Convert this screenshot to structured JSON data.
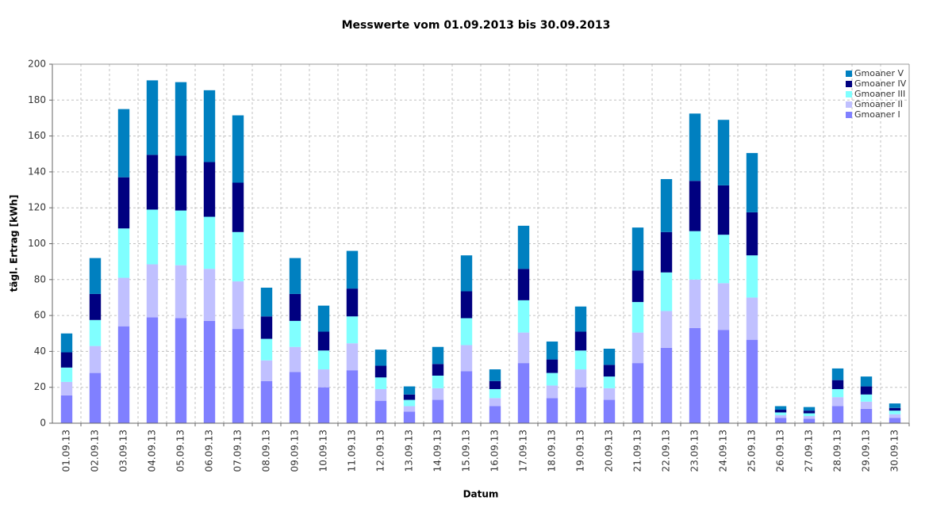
{
  "chart_data": {
    "type": "stacked_bar",
    "title": "Messwerte vom 01.09.2013 bis 30.09.2013",
    "x_label": "Datum",
    "y_label": "tägl. Ertrag [kWh]",
    "categories": [
      "01.09.13",
      "02.09.13",
      "03.09.13",
      "04.09.13",
      "05.09.13",
      "06.09.13",
      "07.09.13",
      "08.09.13",
      "09.09.13",
      "10.09.13",
      "11.09.13",
      "12.09.13",
      "13.09.13",
      "14.09.13",
      "15.09.13",
      "16.09.13",
      "17.09.13",
      "18.09.13",
      "19.09.13",
      "20.09.13",
      "21.09.13",
      "22.09.13",
      "23.09.13",
      "24.09.13",
      "25.09.13",
      "26.09.13",
      "27.09.13",
      "28.09.13",
      "29.09.13",
      "30.09.13"
    ],
    "series": [
      {
        "name": "Gmoaner I",
        "color": "#8080ff",
        "values": [
          15.5,
          28,
          54,
          59,
          58.5,
          57,
          52.5,
          23.5,
          28.5,
          20,
          29.5,
          12.5,
          6.5,
          13,
          29,
          9.5,
          33.5,
          14,
          20,
          13,
          33.5,
          42,
          53,
          52,
          46.5,
          3,
          2.5,
          9.5,
          8,
          3
        ]
      },
      {
        "name": "Gmoaner II",
        "color": "#c0c0ff",
        "values": [
          7.5,
          15,
          27,
          29.5,
          29.5,
          29,
          26.5,
          11.5,
          14,
          10,
          15,
          6.5,
          3,
          6.5,
          14.5,
          4.5,
          17,
          7,
          10,
          6.5,
          17,
          20.5,
          27,
          26,
          23.5,
          1.5,
          1.5,
          5,
          4,
          2
        ]
      },
      {
        "name": "Gmoaner III",
        "color": "#80ffff",
        "values": [
          8,
          14.5,
          27.5,
          30.5,
          30.5,
          29,
          27.5,
          12,
          14.5,
          10.5,
          15,
          6.5,
          3.5,
          7,
          15,
          5,
          18,
          7,
          10.5,
          6.5,
          17,
          21.5,
          27,
          27,
          23.5,
          1.5,
          1.5,
          4.5,
          4,
          2
        ]
      },
      {
        "name": "Gmoaner IV",
        "color": "#000080",
        "values": [
          8.5,
          14.5,
          28.5,
          30.5,
          30.5,
          30.5,
          27.5,
          12.5,
          15,
          10.5,
          15.5,
          6.5,
          3,
          6.5,
          15,
          4.5,
          17.5,
          7.5,
          10.5,
          6.5,
          17.5,
          22.5,
          28,
          27.5,
          24,
          1.5,
          1.5,
          5,
          4.5,
          1.5
        ]
      },
      {
        "name": "Gmoaner V",
        "color": "#0080c0",
        "values": [
          10.5,
          20,
          38,
          41.5,
          41,
          40,
          37.5,
          16,
          20,
          14.5,
          21,
          9,
          4.5,
          9.5,
          20,
          6.5,
          24,
          10,
          14,
          9,
          24,
          29.5,
          37.5,
          36.5,
          33,
          2,
          2,
          6.5,
          5.5,
          2.5
        ]
      }
    ],
    "ylim": [
      0,
      200
    ],
    "yticks": [
      0,
      20,
      40,
      60,
      80,
      100,
      120,
      140,
      160,
      180,
      200
    ],
    "grid": true,
    "legend": "top-right"
  }
}
